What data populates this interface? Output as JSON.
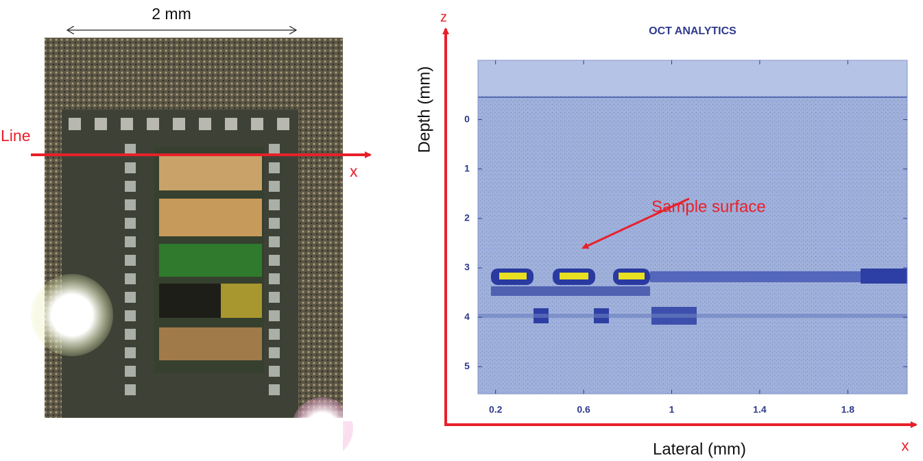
{
  "photo": {
    "scale_label": "2 mm",
    "line_label": "Line",
    "axis_label": "x"
  },
  "oct": {
    "title": "OCT ANALYTICS",
    "z_label": "z",
    "x_axis_label": "x",
    "ylabel": "Depth (mm)",
    "xlabel": "Lateral (mm)",
    "annotation": "Sample surface",
    "xlim": [
      0.12,
      2.07
    ],
    "ylim": [
      -1.2,
      5.55
    ],
    "xticks": [
      0.2,
      0.6,
      1,
      1.4,
      1.8
    ],
    "yticks": [
      0,
      1,
      2,
      3,
      4,
      5
    ]
  }
}
